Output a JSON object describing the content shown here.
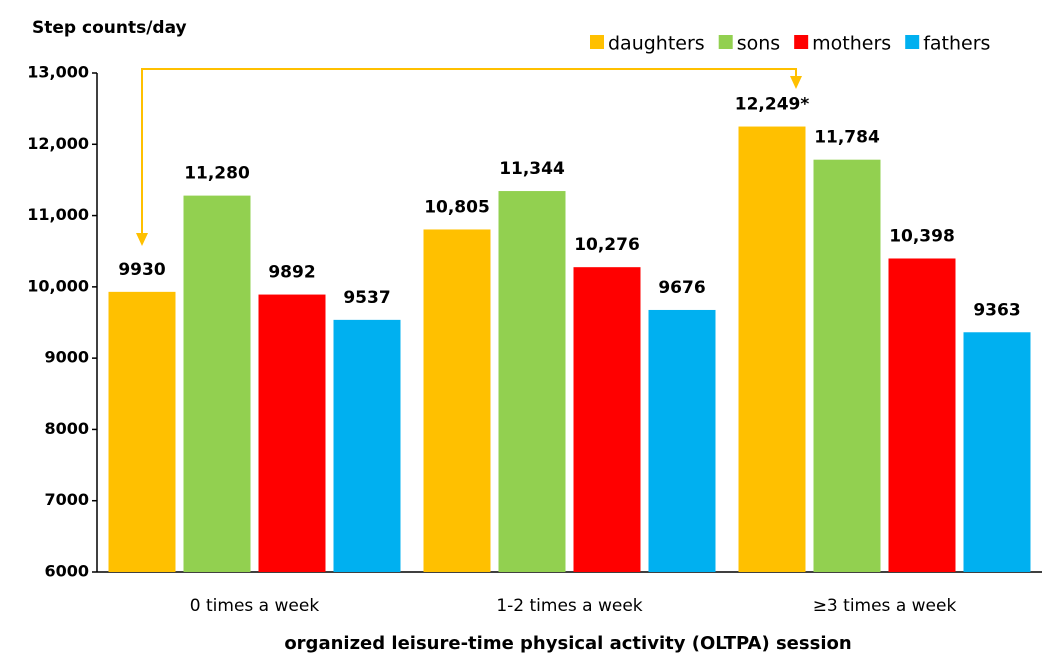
{
  "chart_data": {
    "type": "bar",
    "title": "Step counts/day",
    "x_label": "organized leisure-time physical activity (OLTPA) session",
    "categories": [
      "0 times a week",
      "1-2 times a week",
      "≥3 times a week"
    ],
    "series": [
      {
        "name": "daughters",
        "color": "#FFC000",
        "values": [
          9930,
          10805,
          12249
        ],
        "value_labels": [
          "9930",
          "10,805",
          "12,249*"
        ]
      },
      {
        "name": "sons",
        "color": "#92D050",
        "values": [
          11280,
          11344,
          11784
        ],
        "value_labels": [
          "11,280",
          "11,344",
          "11,784"
        ]
      },
      {
        "name": "mothers",
        "color": "#FF0000",
        "values": [
          9892,
          10276,
          10398
        ],
        "value_labels": [
          "9892",
          "10,276",
          "10,398"
        ]
      },
      {
        "name": "fathers",
        "color": "#00B0F0",
        "values": [
          9537,
          9676,
          9363
        ],
        "value_labels": [
          "9537",
          "9676",
          "9363"
        ]
      }
    ],
    "ylim": [
      6000,
      13000
    ],
    "yticks": [
      6000,
      7000,
      8000,
      9000,
      {
        "value": 10000,
        "label": "10,000"
      },
      {
        "value": 11000,
        "label": "11,000"
      },
      {
        "value": 12000,
        "label": "12,000"
      },
      {
        "value": 13000,
        "label": "13,000"
      }
    ],
    "legend": "top-right"
  }
}
